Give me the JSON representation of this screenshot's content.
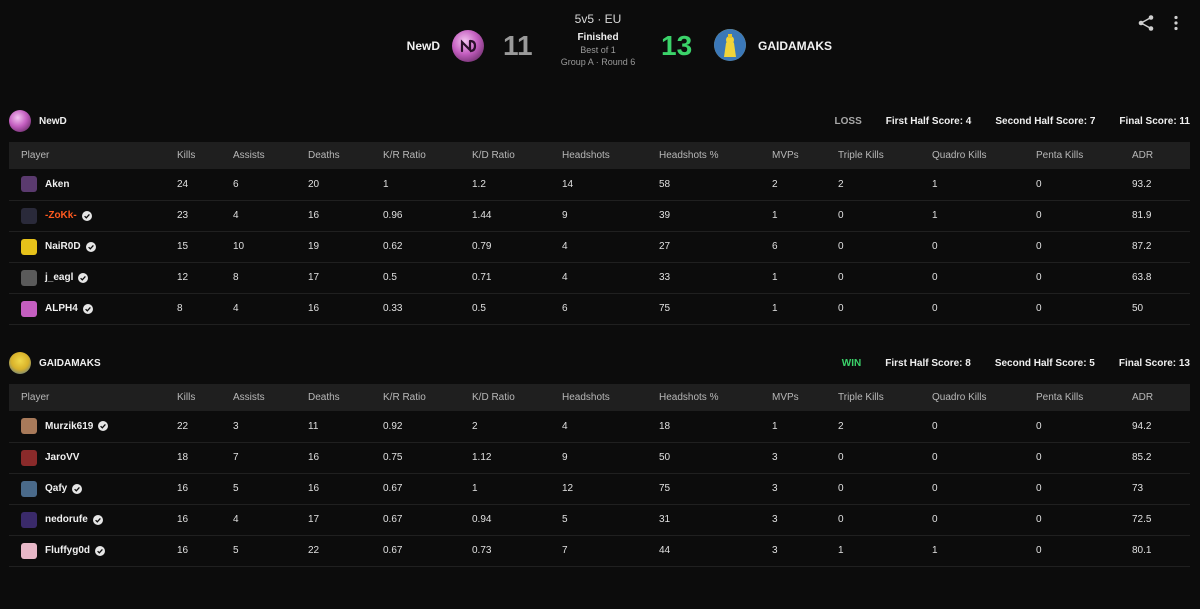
{
  "match": {
    "format": "5v5 · EU",
    "status": "Finished",
    "best_of": "Best of 1",
    "round": "Group A · Round 6",
    "team_a": {
      "name": "NewD",
      "score": "11"
    },
    "team_b": {
      "name": "GAIDAMAKS",
      "score": "13"
    }
  },
  "columns": [
    "Player",
    "Kills",
    "Assists",
    "Deaths",
    "K/R Ratio",
    "K/D Ratio",
    "Headshots",
    "Headshots %",
    "MVPs",
    "Triple Kills",
    "Quadro Kills",
    "Penta Kills",
    "ADR"
  ],
  "teams": [
    {
      "name": "NewD",
      "result": "LOSS",
      "first_half": "First Half Score: 4",
      "second_half": "Second Half Score: 7",
      "final": "Final Score: 11",
      "players": [
        {
          "name": "Aken",
          "verified": false,
          "avatar": "#5a3a6e",
          "stats": [
            "24",
            "6",
            "20",
            "1",
            "1.2",
            "14",
            "58",
            "2",
            "2",
            "1",
            "0",
            "93.2"
          ]
        },
        {
          "name": "-ZoKk-",
          "verified": true,
          "highlight": true,
          "avatar": "#2a2a3a",
          "stats": [
            "23",
            "4",
            "16",
            "0.96",
            "1.44",
            "9",
            "39",
            "1",
            "0",
            "1",
            "0",
            "81.9"
          ]
        },
        {
          "name": "NaiR0D",
          "verified": true,
          "avatar": "#e6c21a",
          "stats": [
            "15",
            "10",
            "19",
            "0.62",
            "0.79",
            "4",
            "27",
            "6",
            "0",
            "0",
            "0",
            "87.2"
          ]
        },
        {
          "name": "j_eagl",
          "verified": true,
          "avatar": "#5a5a5a",
          "stats": [
            "12",
            "8",
            "17",
            "0.5",
            "0.71",
            "4",
            "33",
            "1",
            "0",
            "0",
            "0",
            "63.8"
          ]
        },
        {
          "name": "ALPH4",
          "verified": true,
          "avatar": "#c45ec0",
          "stats": [
            "8",
            "4",
            "16",
            "0.33",
            "0.5",
            "6",
            "75",
            "1",
            "0",
            "0",
            "0",
            "50"
          ]
        }
      ]
    },
    {
      "name": "GAIDAMAKS",
      "result": "WIN",
      "first_half": "First Half Score: 8",
      "second_half": "Second Half Score: 5",
      "final": "Final Score: 13",
      "players": [
        {
          "name": "Murzik619",
          "verified": true,
          "avatar": "#a87a5a",
          "stats": [
            "22",
            "3",
            "11",
            "0.92",
            "2",
            "4",
            "18",
            "1",
            "2",
            "0",
            "0",
            "94.2"
          ]
        },
        {
          "name": "JaroVV",
          "verified": false,
          "avatar": "#8a2a2a",
          "stats": [
            "18",
            "7",
            "16",
            "0.75",
            "1.12",
            "9",
            "50",
            "3",
            "0",
            "0",
            "0",
            "85.2"
          ]
        },
        {
          "name": "Qafy",
          "verified": true,
          "avatar": "#4a6a8a",
          "stats": [
            "16",
            "5",
            "16",
            "0.67",
            "1",
            "12",
            "75",
            "3",
            "0",
            "0",
            "0",
            "73"
          ]
        },
        {
          "name": "nedorufe",
          "verified": true,
          "avatar": "#3a2a6a",
          "stats": [
            "16",
            "4",
            "17",
            "0.67",
            "0.94",
            "5",
            "31",
            "3",
            "0",
            "0",
            "0",
            "72.5"
          ]
        },
        {
          "name": "Fluffyg0d",
          "verified": true,
          "avatar": "#e8b8c8",
          "stats": [
            "16",
            "5",
            "22",
            "0.67",
            "0.73",
            "7",
            "44",
            "3",
            "1",
            "1",
            "0",
            "80.1"
          ]
        }
      ]
    }
  ]
}
